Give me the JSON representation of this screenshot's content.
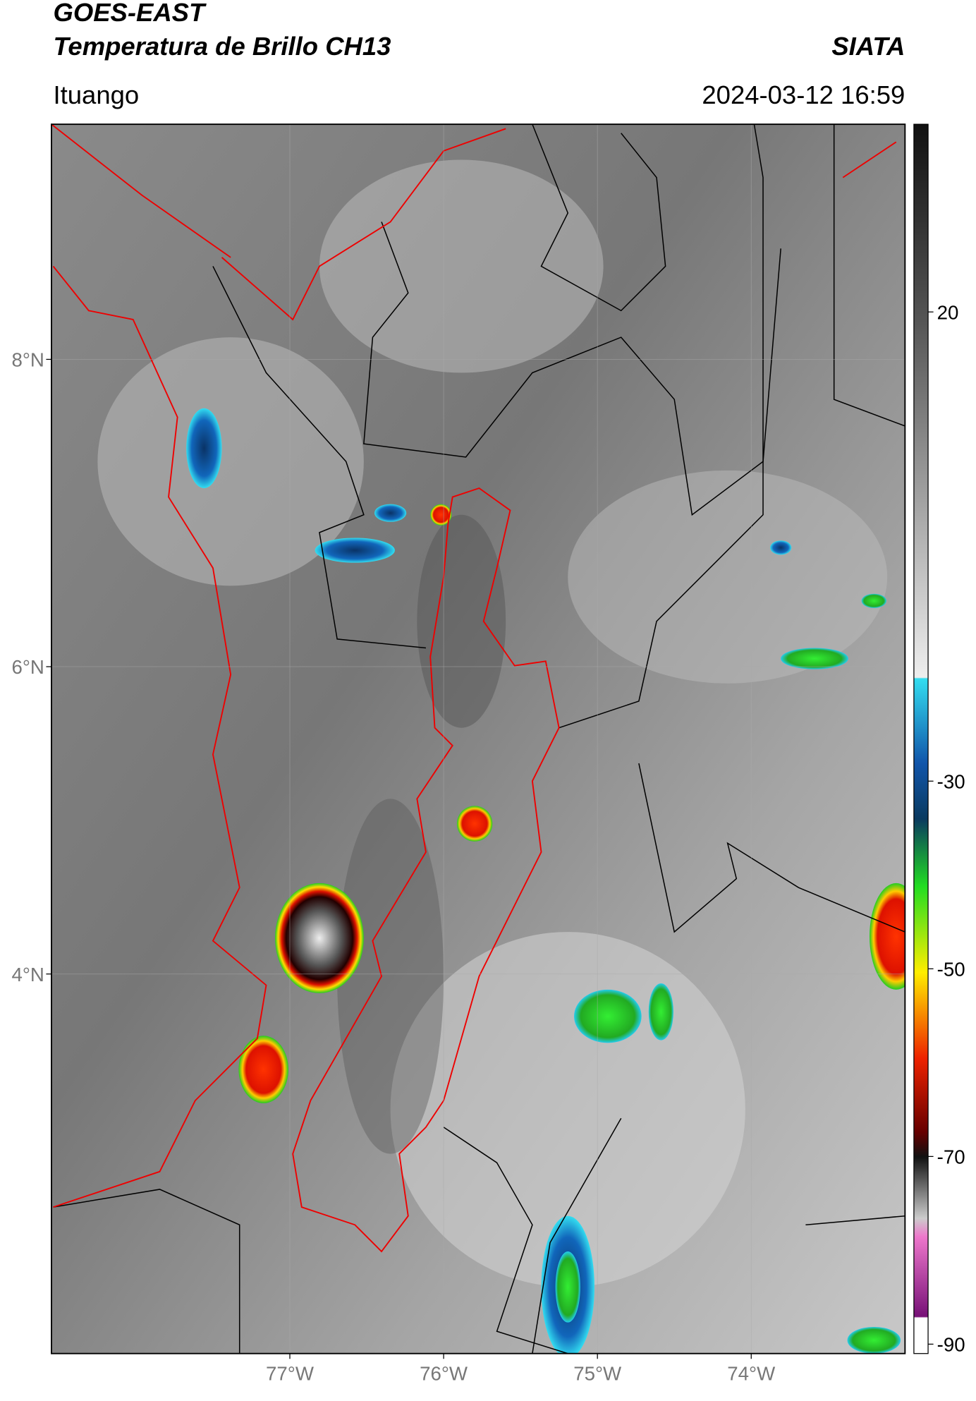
{
  "header": {
    "satellite": "GOES-EAST",
    "product": "Temperatura de Brillo CH13",
    "source": "SIATA",
    "location": "Ituango",
    "timestamp": "2024-03-12 16:59"
  },
  "map": {
    "lonlim": [
      -78.55,
      -73
    ],
    "latlim": [
      1.53,
      9.53
    ],
    "lat_ticks": [
      {
        "value": 8,
        "label": "8°N"
      },
      {
        "value": 6,
        "label": "6°N"
      },
      {
        "value": 4,
        "label": "4°N"
      }
    ],
    "lon_ticks": [
      {
        "value": -77,
        "label": "77°W"
      },
      {
        "value": -76,
        "label": "76°W"
      },
      {
        "value": -75,
        "label": "75°W"
      },
      {
        "value": -74,
        "label": "74°W"
      }
    ],
    "grid": true
  },
  "colorbar": {
    "lim": [
      -91,
      40
    ],
    "ticks": [
      20,
      -30,
      -50,
      -70,
      -90
    ]
  }
}
